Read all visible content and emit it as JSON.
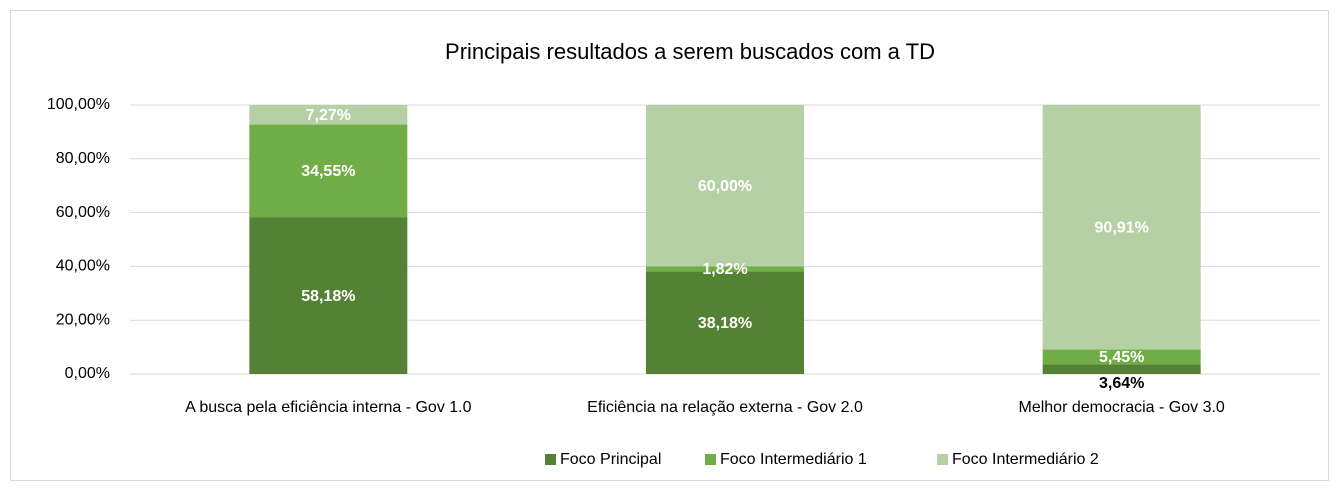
{
  "chart_data": {
    "type": "stacked_bar",
    "title": "Principais resultados a serem buscados com a TD",
    "categories": [
      "A busca pela eficiência interna - Gov 1.0",
      "Eficiência na relação externa - Gov 2.0",
      "Melhor democracia - Gov 3.0"
    ],
    "series": [
      {
        "name": "Foco Principal",
        "color": "#548235",
        "values": [
          58.18,
          38.18,
          3.64
        ],
        "value_labels": [
          "58,18%",
          "38,18%",
          "3,64%"
        ]
      },
      {
        "name": "Foco Intermediário 1",
        "color": "#70ad47",
        "values": [
          34.55,
          1.82,
          5.45
        ],
        "value_labels": [
          "34,55%",
          "1,82%",
          "5,45%"
        ]
      },
      {
        "name": "Foco Intermediário 2",
        "color": "#b6d0a6",
        "values": [
          7.27,
          60.0,
          90.91
        ],
        "value_labels": [
          "7,27%",
          "60,00%",
          "90,91%"
        ]
      }
    ],
    "ylim": [
      0,
      100
    ],
    "yticks": [
      {
        "value": 0,
        "label": "0,00%"
      },
      {
        "value": 20,
        "label": "20,00%"
      },
      {
        "value": 40,
        "label": "40,00%"
      },
      {
        "value": 60,
        "label": "60,00%"
      },
      {
        "value": 80,
        "label": "80,00%"
      },
      {
        "value": 100,
        "label": "100,00%"
      }
    ],
    "grid": true,
    "legend": "bottom"
  }
}
